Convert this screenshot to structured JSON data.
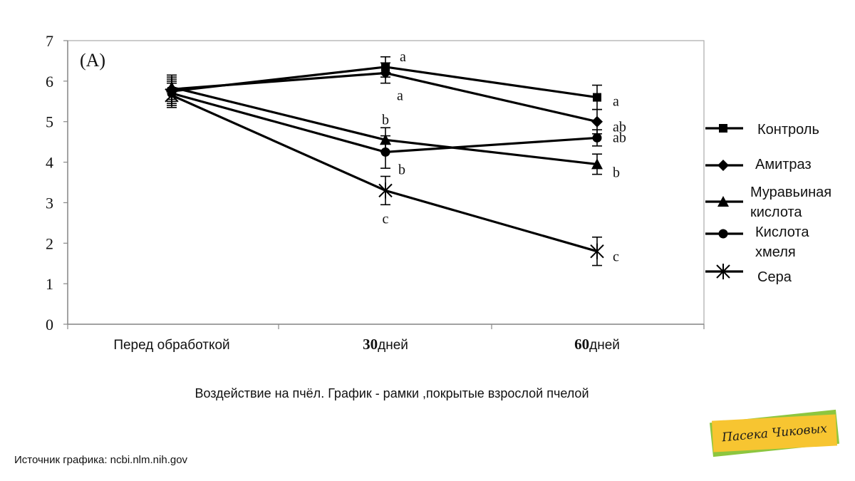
{
  "chart_data": {
    "type": "line",
    "panel_label": "(A)",
    "categories": [
      "Перед обработкой",
      "30 дней",
      "60 дней"
    ],
    "x_tick_labels": [
      {
        "num": "",
        "text": "Перед обработкой"
      },
      {
        "num": "30",
        "text": "дней"
      },
      {
        "num": "60",
        "text": "дней"
      }
    ],
    "ylim": [
      0,
      7
    ],
    "yticks": [
      0,
      1,
      2,
      3,
      4,
      5,
      6,
      7
    ],
    "grid": false,
    "legend_position": "right",
    "series": [
      {
        "name": "Контроль",
        "marker": "square",
        "values": [
          5.75,
          6.35,
          5.6
        ],
        "errors": [
          0.3,
          0.25,
          0.3
        ],
        "letters": [
          "",
          "a",
          "a"
        ]
      },
      {
        "name": "Амитраз",
        "marker": "diamond",
        "values": [
          5.8,
          6.2,
          5.0
        ],
        "errors": [
          0.3,
          0.25,
          0.3
        ],
        "letters": [
          "",
          "a",
          "ab"
        ]
      },
      {
        "name": "Муравьиная кислота",
        "marker": "triangle",
        "values": [
          5.85,
          4.55,
          3.95
        ],
        "errors": [
          0.3,
          0.3,
          0.25
        ],
        "letters": [
          "",
          "b",
          "b"
        ]
      },
      {
        "name": "Кислота хмеля",
        "marker": "circle",
        "values": [
          5.7,
          4.25,
          4.6
        ],
        "errors": [
          0.3,
          0.4,
          0.2
        ],
        "letters": [
          "",
          "b",
          "ab"
        ]
      },
      {
        "name": "Сера",
        "marker": "star",
        "values": [
          5.65,
          3.3,
          1.8
        ],
        "errors": [
          0.3,
          0.35,
          0.35
        ],
        "letters": [
          "",
          "c",
          "c"
        ]
      }
    ],
    "legend_lines": [
      [
        "Контроль"
      ],
      [
        "Амитраз"
      ],
      [
        "Муравьиная",
        "кислота"
      ],
      [
        "Кислота",
        "хмеля"
      ],
      [
        "Сера"
      ]
    ]
  },
  "caption": "Воздействие на пчёл. График - рамки ,покрытые взрослой пчелой",
  "source": "Источник графика: ncbi.nlm.nih.gov",
  "logo": {
    "text": "Пасека Чиковых",
    "colors": {
      "back": "#8dc63f",
      "front": "#f7c531"
    }
  }
}
